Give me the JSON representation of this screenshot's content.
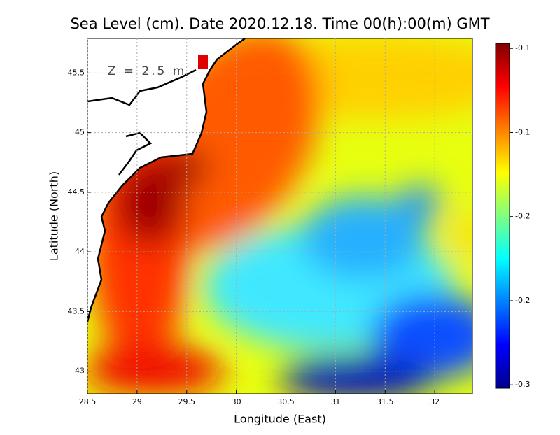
{
  "chart_data": {
    "type": "heatmap",
    "title": "Sea Level (cm). Date 2020.12.18. Time 00(h):00(m) GMT",
    "x_label": "Longitude (East)",
    "y_label": "Latitude (North)",
    "annotation": "Z = 2.5 m",
    "xlim": [
      28.5,
      32.38
    ],
    "ylim": [
      42.81,
      45.79
    ],
    "xticks": [
      28.5,
      29,
      29.5,
      30,
      30.5,
      31,
      31.5,
      32
    ],
    "yticks": [
      43,
      43.5,
      44,
      44.5,
      45,
      45.5
    ],
    "grid": true,
    "clim": [
      -0.302,
      -0.097
    ],
    "cticks": [
      {
        "value": -0.1,
        "label": "-0.1"
      },
      {
        "value": -0.15,
        "label": "-0.1"
      },
      {
        "value": -0.2,
        "label": "-0.2"
      },
      {
        "value": -0.25,
        "label": "-0.2"
      },
      {
        "value": -0.3,
        "label": "-0.3"
      }
    ]
  }
}
